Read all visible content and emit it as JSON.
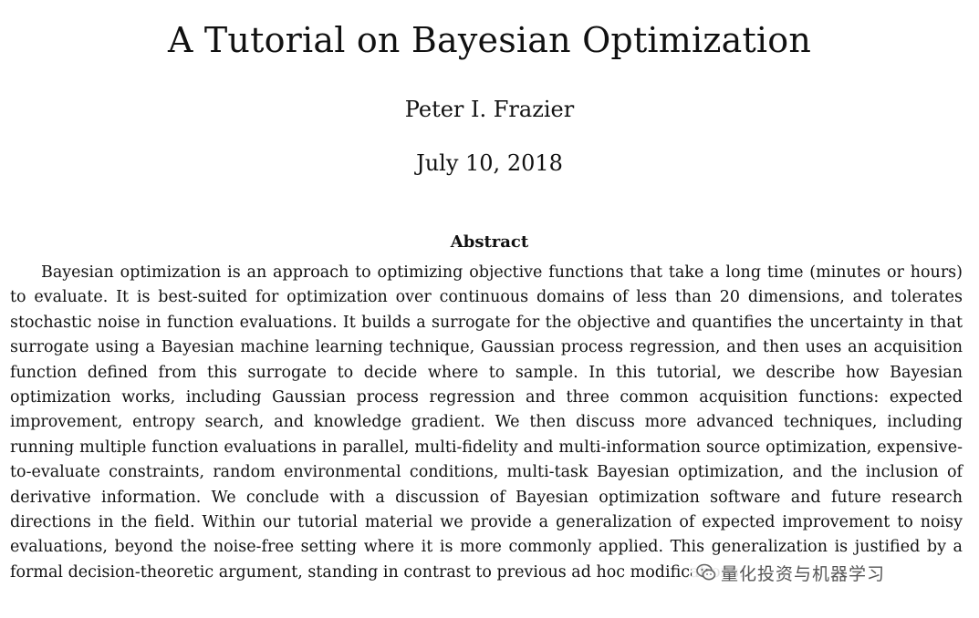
{
  "paper": {
    "title": "A Tutorial on Bayesian Optimization",
    "author": "Peter I. Frazier",
    "date": "July 10, 2018",
    "abstract_heading": "Abstract",
    "abstract": "Bayesian optimization is an approach to optimizing objective functions that take a long time (min­utes or hours) to evaluate. It is best-suited for optimization over continuous domains of less than 20 dimensions, and tolerates stochastic noise in function evaluations. It builds a surrogate for the objective and quantifies the uncertainty in that surrogate using a Bayesian machine learning technique, Gaussian process regression, and then uses an acquisition function defined from this surrogate to decide where to sample. In this tutorial, we describe how Bayesian optimization works, including Gaussian process re­gression and three common acquisition functions: expected improvement, entropy search, and knowledge gradient. We then discuss more advanced techniques, including running multiple function evaluations in parallel, multi-fidelity and multi-information source optimization, expensive-to-evaluate constraints, random environmental conditions, multi-task Bayesian optimization, and the inclusion of derivative infor­mation. We conclude with a discussion of Bayesian optimization software and future research directions in the field. Within our tutorial material we provide a generalization of expected improvement to noisy evaluations, beyond the noise-free setting where it is more commonly applied. This generalization is justified by a formal decision-theoretic argument, standing in contrast to previous ad hoc modifications."
  },
  "watermark": {
    "icon": "wechat-logo-icon",
    "text": "量化投资与机器学习"
  }
}
